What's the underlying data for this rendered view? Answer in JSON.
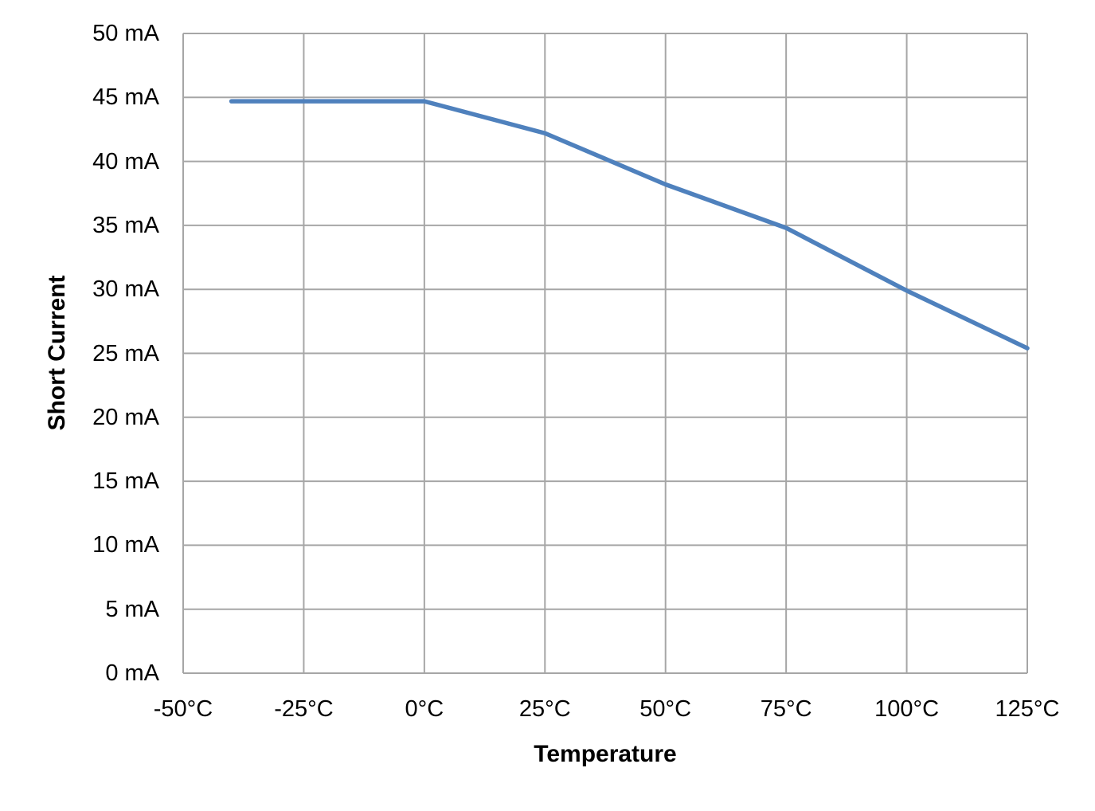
{
  "chart_data": {
    "type": "line",
    "title": "",
    "xlabel": "Temperature",
    "ylabel": "Short Current",
    "x": [
      -40,
      0,
      25,
      50,
      75,
      100,
      125
    ],
    "series": [
      {
        "name": "Short Current",
        "color": "#4F81BD",
        "values": [
          44.7,
          44.7,
          42.2,
          38.2,
          34.8,
          29.9,
          25.4
        ]
      }
    ],
    "xlim": [
      -50,
      125
    ],
    "ylim": [
      0,
      50
    ],
    "x_ticks": [
      -50,
      -25,
      0,
      25,
      50,
      75,
      100,
      125
    ],
    "x_tick_labels": [
      "-50°C",
      "-25°C",
      "0°C",
      "25°C",
      "50°C",
      "75°C",
      "100°C",
      "125°C"
    ],
    "y_ticks": [
      0,
      5,
      10,
      15,
      20,
      25,
      30,
      35,
      40,
      45,
      50
    ],
    "y_tick_labels": [
      "0 mA",
      "5 mA",
      "10 mA",
      "15 mA",
      "20 mA",
      "25 mA",
      "30 mA",
      "35 mA",
      "40 mA",
      "45 mA",
      "50 mA"
    ],
    "grid": true,
    "legend": "none",
    "colors": {
      "line": "#4F81BD",
      "grid": "#A6A6A6",
      "text": "#000000",
      "background": "#FFFFFF"
    }
  }
}
